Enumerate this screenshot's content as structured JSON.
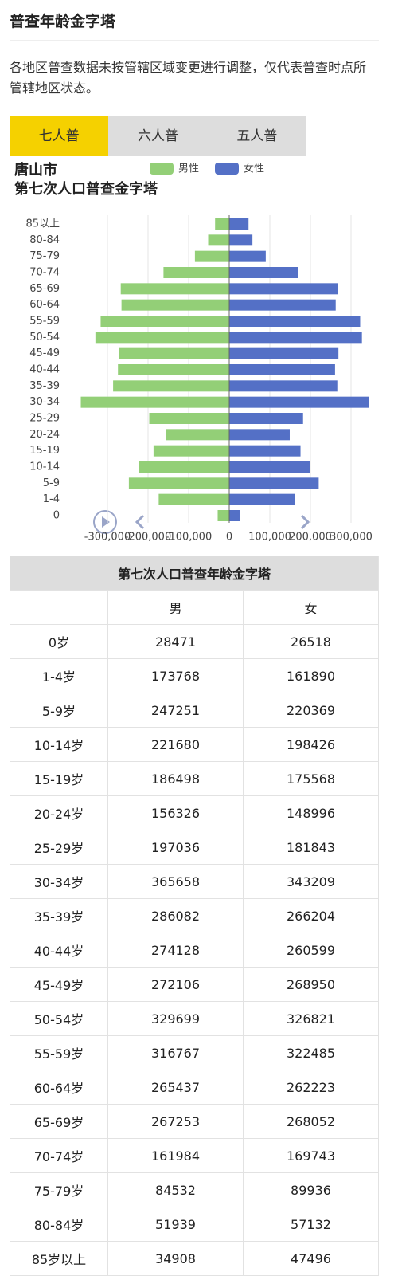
{
  "header": {
    "title": "普查年龄金字塔"
  },
  "note": "各地区普查数据未按管辖区域变更进行调整，仅代表普查时点所管辖地区状态。",
  "tabs": [
    "七人普",
    "六人普",
    "五人普"
  ],
  "chart_data": {
    "type": "bar",
    "orientation": "horizontal",
    "title": "唐山市",
    "subtitle": "第七次人口普查金字塔",
    "categories": [
      "0",
      "1-4",
      "5-9",
      "10-14",
      "15-19",
      "20-24",
      "25-29",
      "30-34",
      "35-39",
      "40-44",
      "45-49",
      "50-54",
      "55-59",
      "60-64",
      "65-69",
      "70-74",
      "75-79",
      "80-84",
      "85以上"
    ],
    "series": [
      {
        "name": "男性",
        "color": "#93cf77",
        "values": [
          -28471,
          -173768,
          -247251,
          -221680,
          -186498,
          -156326,
          -197036,
          -365658,
          -286082,
          -274128,
          -272106,
          -329699,
          -316767,
          -265437,
          -267253,
          -161984,
          -84532,
          -51939,
          -34908
        ]
      },
      {
        "name": "女性",
        "color": "#5470c6",
        "values": [
          26518,
          161890,
          220369,
          198426,
          175568,
          148996,
          181843,
          343209,
          266204,
          260599,
          268950,
          326821,
          322485,
          262223,
          268052,
          169743,
          89936,
          57132,
          47496
        ]
      }
    ],
    "xlim": [
      -400000,
      400000
    ],
    "xticks": [
      {
        "value": -300000,
        "label": "-300,000"
      },
      {
        "value": -200000,
        "label": "-200,000"
      },
      {
        "value": -100000,
        "label": "-100,000"
      },
      0,
      {
        "value": 100000,
        "label": "100,000"
      },
      {
        "value": 200000,
        "label": "200,000"
      },
      {
        "value": 300000,
        "label": "300,000"
      }
    ],
    "grid": true,
    "legend": "top"
  },
  "table": {
    "title": "第七次人口普查年龄金字塔",
    "header": [
      "男",
      "女"
    ],
    "rows": [
      [
        "0岁",
        28471,
        26518
      ],
      [
        "1-4岁",
        173768,
        161890
      ],
      [
        "5-9岁",
        247251,
        220369
      ],
      [
        "10-14岁",
        221680,
        198426
      ],
      [
        "15-19岁",
        186498,
        175568
      ],
      [
        "20-24岁",
        156326,
        148996
      ],
      [
        "25-29岁",
        197036,
        181843
      ],
      [
        "30-34岁",
        365658,
        343209
      ],
      [
        "35-39岁",
        286082,
        266204
      ],
      [
        "40-44岁",
        274128,
        260599
      ],
      [
        "45-49岁",
        272106,
        268950
      ],
      [
        "50-54岁",
        329699,
        326821
      ],
      [
        "55-59岁",
        316767,
        322485
      ],
      [
        "60-64岁",
        265437,
        262223
      ],
      [
        "65-69岁",
        267253,
        268052
      ],
      [
        "70-74岁",
        161984,
        169743
      ],
      [
        "75-79岁",
        84532,
        89936
      ],
      [
        "80-84岁",
        51939,
        57132
      ],
      [
        "85岁以上",
        34908,
        47496
      ]
    ]
  }
}
